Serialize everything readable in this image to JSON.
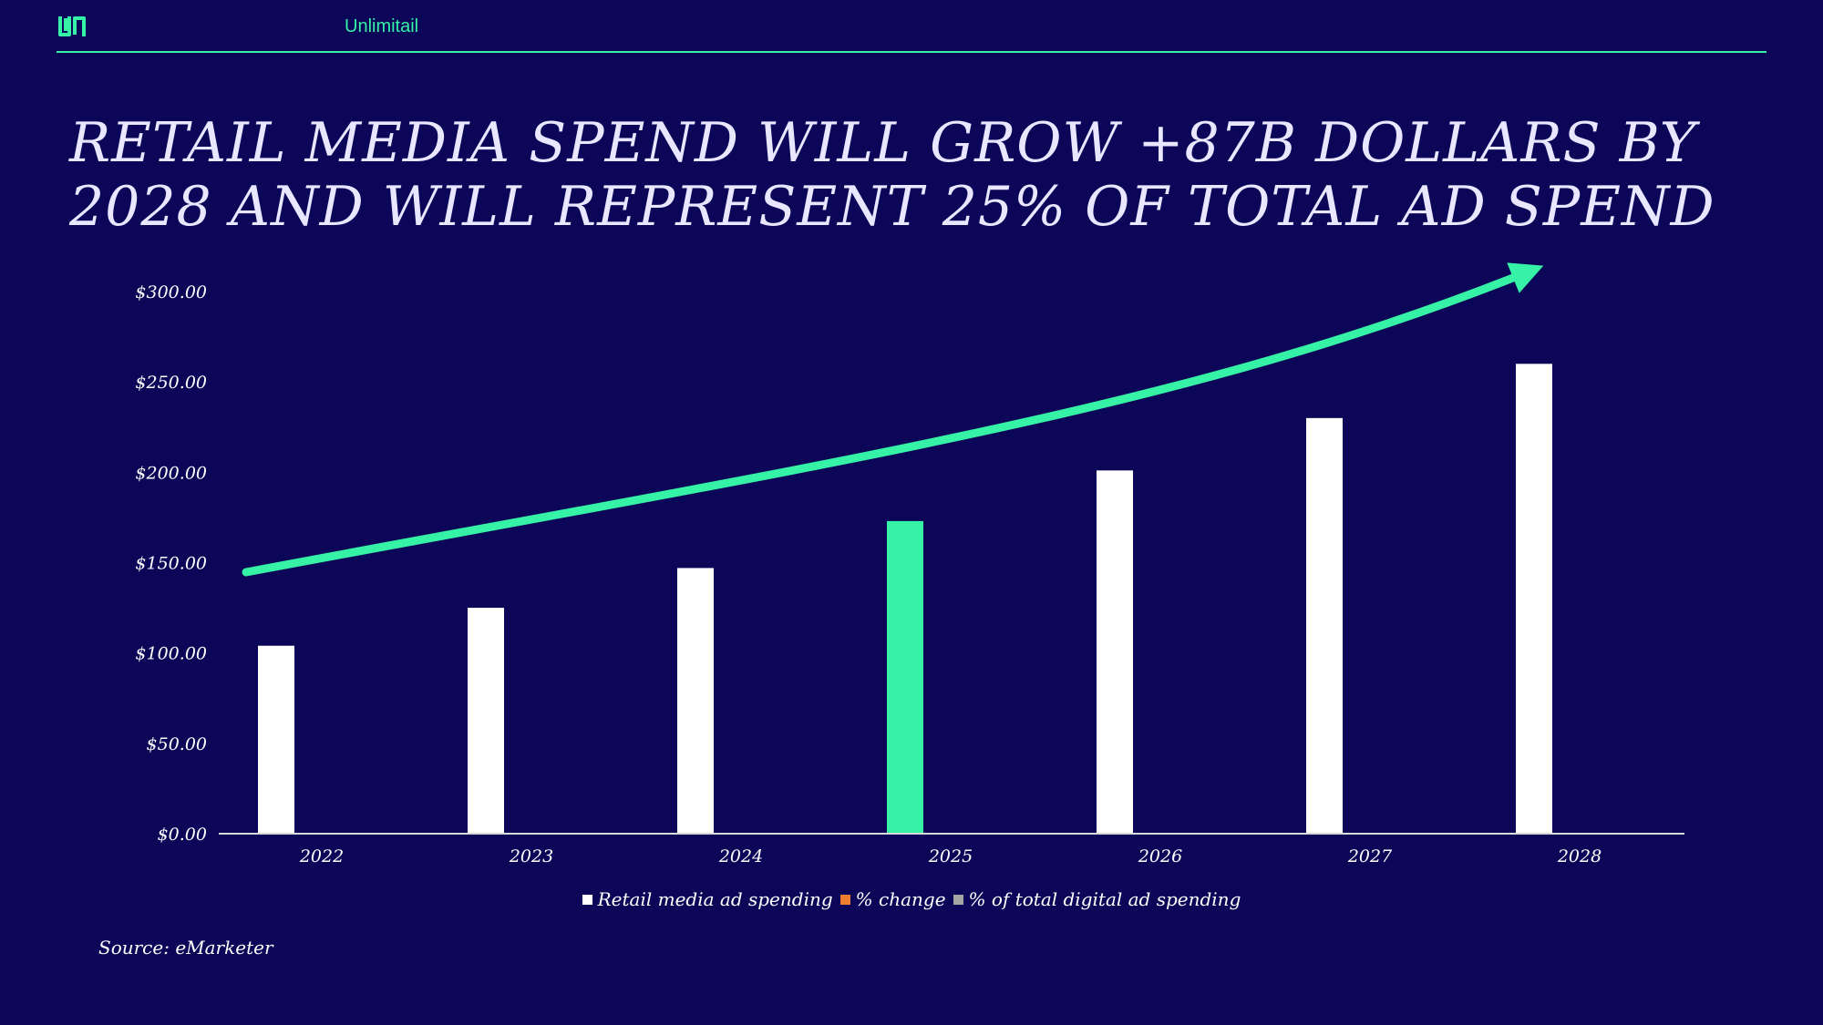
{
  "header": {
    "brand": "Unlimitail",
    "logo_icon": "unlimitail-logo-icon",
    "accent_color": "#35f2a6",
    "background_color": "#0b0657"
  },
  "slide": {
    "title": "RETAIL MEDIA SPEND WILL GROW +87B DOLLARS BY 2028 AND WILL REPRESENT 25% OF TOTAL AD SPEND",
    "source": "Source: eMarketer"
  },
  "chart_data": {
    "type": "bar",
    "categories": [
      "2022",
      "2023",
      "2024",
      "2025",
      "2026",
      "2027",
      "2028"
    ],
    "series": [
      {
        "name": "Retail media ad spending",
        "values": [
          104,
          125,
          147,
          173,
          201,
          230,
          260
        ],
        "color": "#ffffff",
        "highlight_index": 3,
        "highlight_color": "#35f2a6"
      }
    ],
    "legend": [
      {
        "label": "Retail media ad spending",
        "color": "#ffffff"
      },
      {
        "label": "% change",
        "color": "#ed7d31"
      },
      {
        "label": "% of total digital ad spending",
        "color": "#a5a5a5"
      }
    ],
    "ytick_labels": [
      "$0.00",
      "$50.00",
      "$100.00",
      "$150.00",
      "$200.00",
      "$250.00",
      "$300.00"
    ],
    "ylim": [
      0,
      300
    ],
    "grid": false,
    "legend_position": "bottom",
    "annotation": "trend-arrow",
    "annotation_color": "#35f2a6"
  }
}
